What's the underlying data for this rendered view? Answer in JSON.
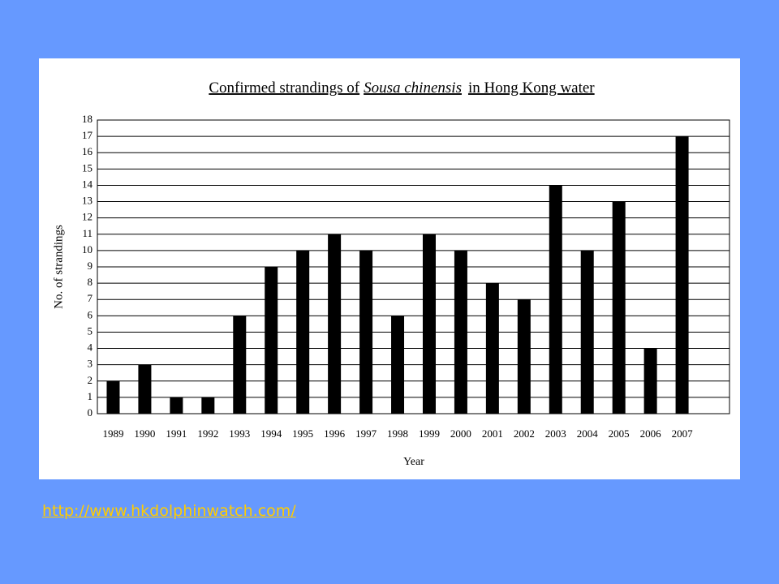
{
  "chart_data": {
    "type": "bar",
    "title": [
      "Confirmed strandings of",
      "Sousa chinensis",
      "in Hong Kong water"
    ],
    "x_label": "Year",
    "y_label": "No. of strandings",
    "categories": [
      "1989",
      "1990",
      "1991",
      "1992",
      "1993",
      "1994",
      "1995",
      "1996",
      "1997",
      "1998",
      "1999",
      "2000",
      "2001",
      "2002",
      "2003",
      "2004",
      "2005",
      "2006",
      "2007",
      null
    ],
    "values": [
      2,
      3,
      1,
      1,
      6,
      9,
      10,
      11,
      10,
      6,
      11,
      10,
      8,
      7,
      14,
      10,
      13,
      4,
      17,
      null
    ],
    "color": "#000000",
    "ylim": [
      0,
      18
    ],
    "yticks": [
      0,
      1,
      2,
      3,
      4,
      5,
      6,
      7,
      8,
      9,
      10,
      11,
      12,
      13,
      14,
      15,
      16,
      17,
      18
    ],
    "grid": true
  },
  "footer": {
    "link": "http://www.hkdolphinwatch.com/"
  }
}
